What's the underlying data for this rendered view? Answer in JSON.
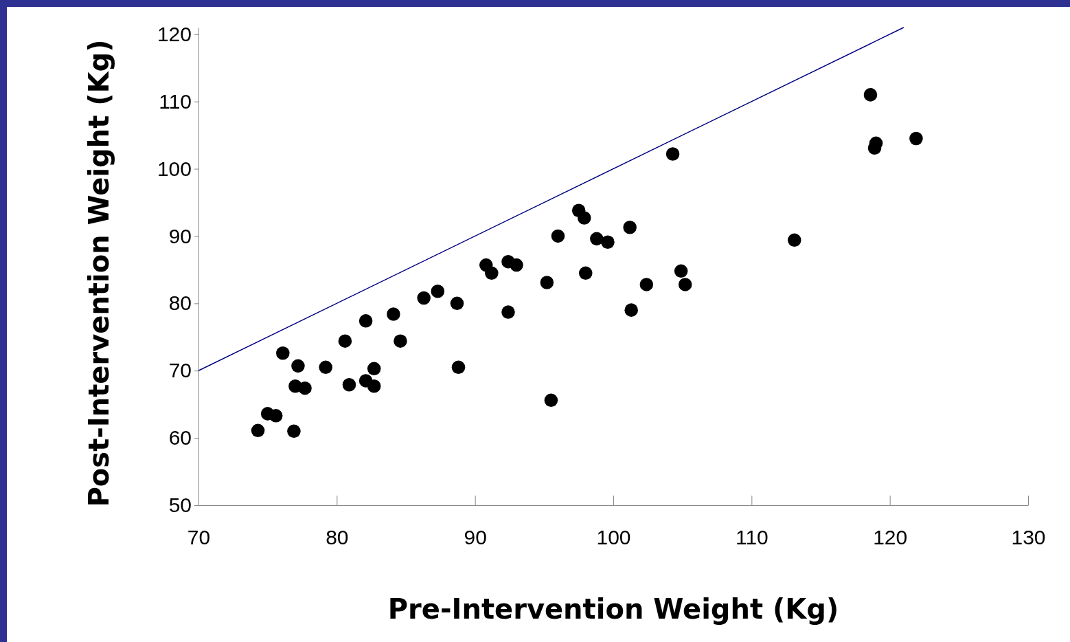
{
  "chart_data": {
    "type": "scatter",
    "xlabel": "Pre-Intervention Weight (Kg)",
    "ylabel": "Post-Intervention Weight (Kg)",
    "xlim": [
      70,
      130
    ],
    "ylim": [
      50,
      121
    ],
    "xticks": [
      70,
      80,
      90,
      100,
      110,
      120,
      130
    ],
    "yticks": [
      50,
      60,
      70,
      80,
      90,
      100,
      110,
      120
    ],
    "grid": false,
    "series": [
      {
        "color": "#000000",
        "marker": "circle",
        "x": [
          74.3,
          75.0,
          75.6,
          76.9,
          76.1,
          77.2,
          77.0,
          77.7,
          79.2,
          80.6,
          80.9,
          82.1,
          82.1,
          82.7,
          82.7,
          84.1,
          84.6,
          86.3,
          87.3,
          88.7,
          88.8,
          90.8,
          91.2,
          92.4,
          93.0,
          92.4,
          95.2,
          95.5,
          96.0,
          97.5,
          97.9,
          98.0,
          98.8,
          99.6,
          101.2,
          101.3,
          102.4,
          104.3,
          104.9,
          105.2,
          113.1,
          118.6,
          119.0,
          118.9,
          121.9
        ],
        "values": [
          61.1,
          63.6,
          63.3,
          61.0,
          72.6,
          70.7,
          67.7,
          67.4,
          70.5,
          74.4,
          67.9,
          77.4,
          68.5,
          70.3,
          67.7,
          78.4,
          74.4,
          80.8,
          81.8,
          80.0,
          70.5,
          85.7,
          84.5,
          86.2,
          85.7,
          78.7,
          83.1,
          65.6,
          90.0,
          93.8,
          92.7,
          84.5,
          89.6,
          89.1,
          91.3,
          79.0,
          82.8,
          102.2,
          84.8,
          82.8,
          89.4,
          111.0,
          103.8,
          103.1,
          104.5
        ]
      },
      {
        "type": "line",
        "color": "#000080",
        "marker": "none",
        "line_style": "solid",
        "x": [
          70,
          121
        ],
        "values": [
          70,
          121
        ]
      }
    ]
  }
}
